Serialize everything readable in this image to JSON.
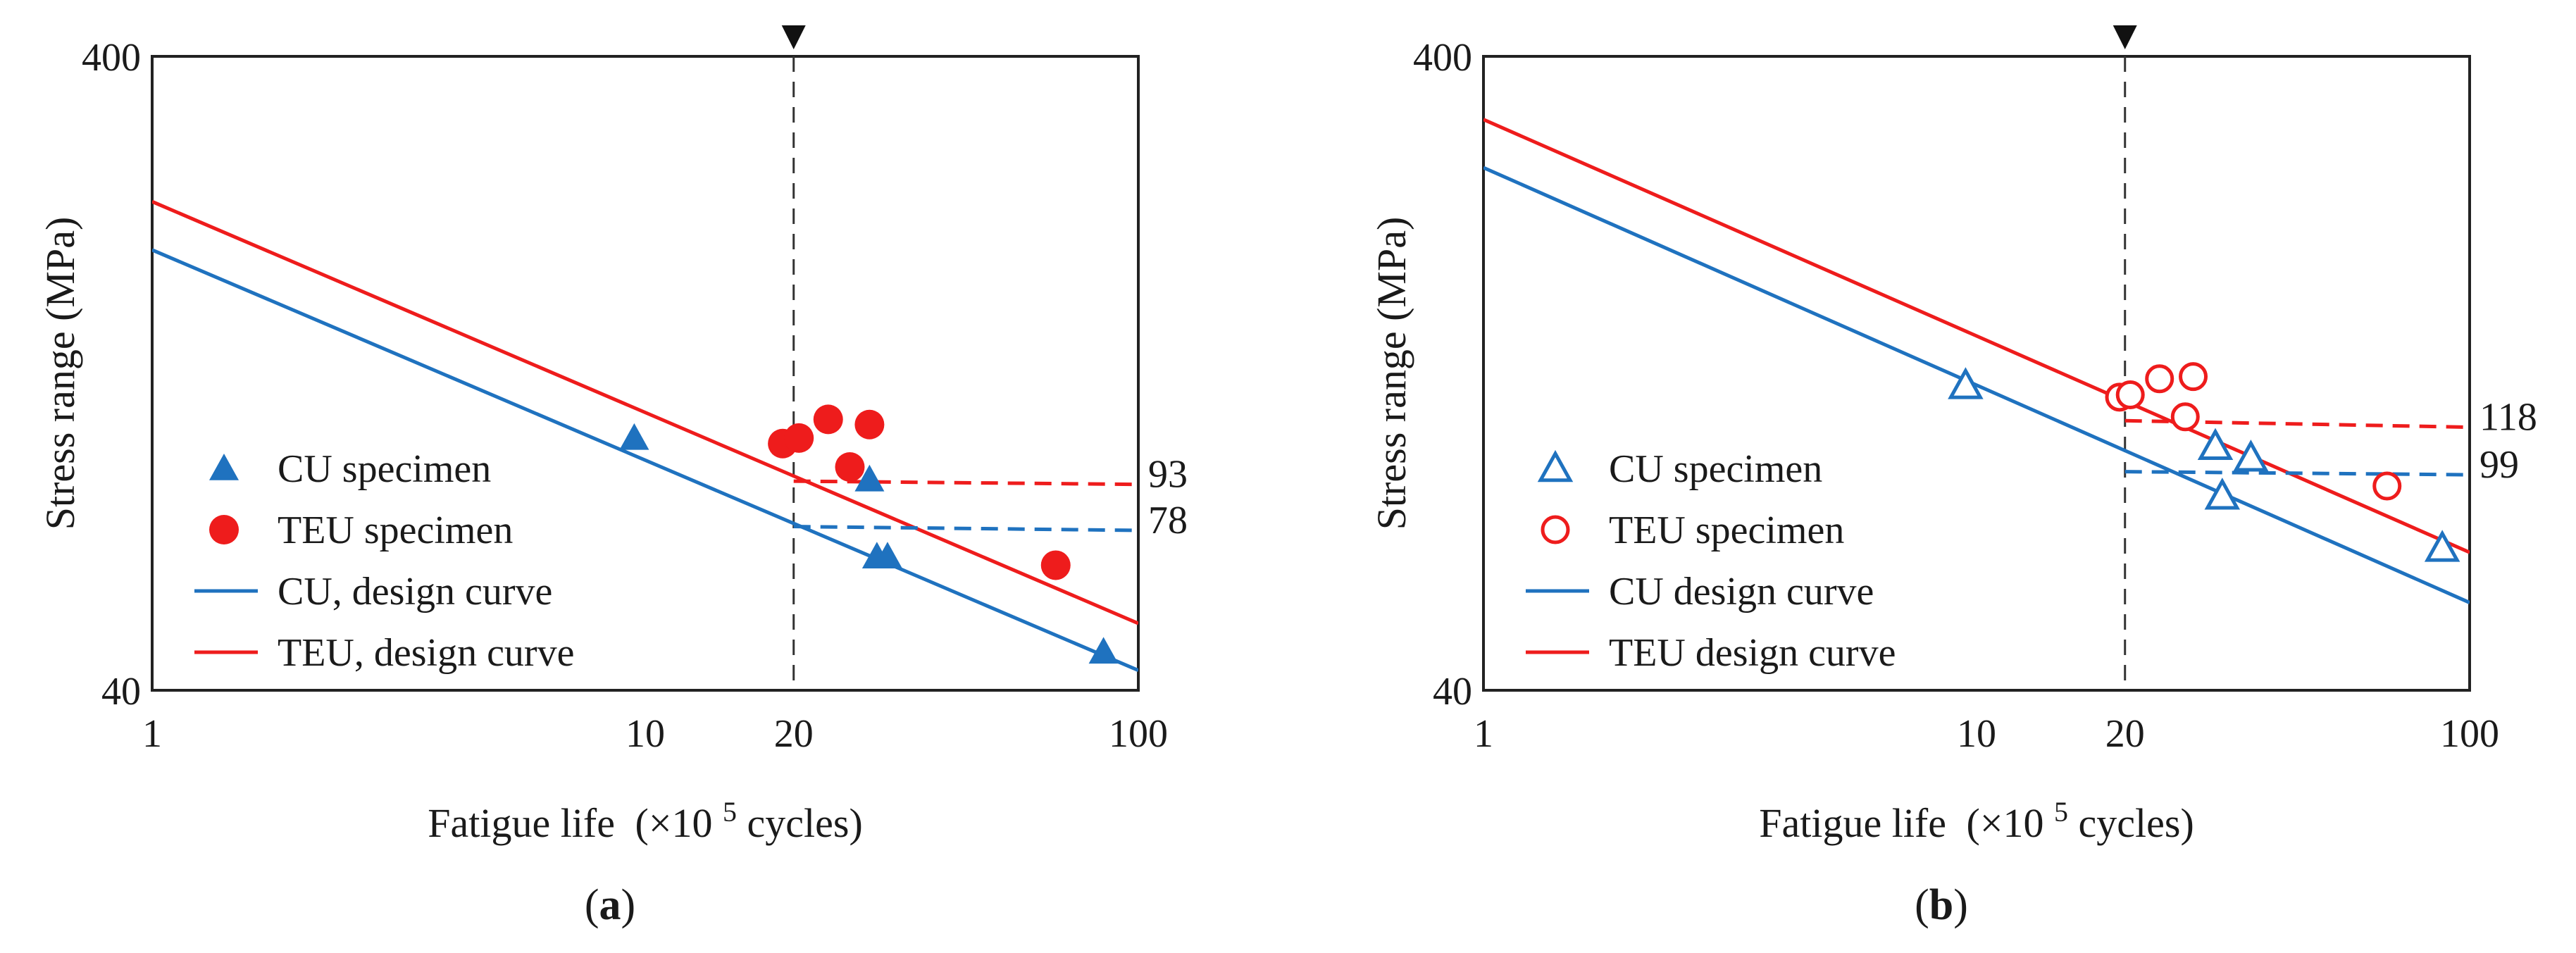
{
  "chart_data": [
    {
      "type": "scatter",
      "panel_label": "a",
      "xlabel": "Fatigue life",
      "xlabel_unit_open": "(×10",
      "xlabel_unit_exp": "5",
      "xlabel_unit_close": " cycles)",
      "ylabel": "Stress range (MPa)",
      "x_scale": "log",
      "y_scale": "log",
      "xlim": [
        1,
        100
      ],
      "ylim": [
        40,
        400
      ],
      "x_ticks": [
        "1",
        "10",
        "100"
      ],
      "y_ticks": [
        "40",
        "400"
      ],
      "reference_marker": {
        "x": 20,
        "label": "20"
      },
      "series": [
        {
          "name": "CU specimen",
          "kind": "points",
          "marker": "triangle",
          "filled": true,
          "color": "#1f72bf",
          "points": [
            [
              9.5,
              100
            ],
            [
              28.5,
              86
            ],
            [
              29.5,
              65
            ],
            [
              31,
              65
            ],
            [
              85,
              46
            ]
          ]
        },
        {
          "name": "TEU specimen",
          "kind": "points",
          "marker": "circle",
          "filled": true,
          "color": "#ee1c1c",
          "points": [
            [
              19,
              98
            ],
            [
              20.5,
              100
            ],
            [
              23.5,
              107
            ],
            [
              26,
              90
            ],
            [
              28.5,
              105
            ],
            [
              68,
              63
            ]
          ]
        },
        {
          "name": "CU, design curve",
          "kind": "line",
          "color": "#1f72bf",
          "points": [
            [
              1,
              198
            ],
            [
              100,
              43
            ]
          ]
        },
        {
          "name": "TEU, design curve",
          "kind": "line",
          "color": "#ee1c1c",
          "points": [
            [
              1,
              236
            ],
            [
              100,
              51
            ]
          ]
        }
      ],
      "hlines": [
        {
          "label": "93",
          "color": "#ee1c1c",
          "from": 20,
          "to": 100,
          "y_start": 85.5,
          "y_end": 84.5
        },
        {
          "label": "78",
          "color": "#1f72bf",
          "from": 20,
          "to": 100,
          "y_start": 72.5,
          "y_end": 71.5
        }
      ],
      "legend": [
        "CU specimen",
        "TEU specimen",
        "CU, design curve",
        "TEU, design curve"
      ],
      "legend_position": "bottom-left"
    },
    {
      "type": "scatter",
      "panel_label": "b",
      "xlabel": "Fatigue life",
      "xlabel_unit_open": "(×10",
      "xlabel_unit_exp": "5",
      "xlabel_unit_close": " cycles)",
      "ylabel": "Stress range (MPa)",
      "x_scale": "log",
      "y_scale": "log",
      "xlim": [
        1,
        100
      ],
      "ylim": [
        40,
        400
      ],
      "x_ticks": [
        "1",
        "10",
        "100"
      ],
      "y_ticks": [
        "40",
        "400"
      ],
      "reference_marker": {
        "x": 20,
        "label": "20"
      },
      "series": [
        {
          "name": "CU specimen",
          "kind": "points",
          "marker": "triangle",
          "filled": false,
          "color": "#1f72bf",
          "points": [
            [
              9.5,
              121
            ],
            [
              30.5,
              97
            ],
            [
              31.5,
              81
            ],
            [
              36,
              93
            ],
            [
              88,
              67
            ]
          ]
        },
        {
          "name": "TEU specimen",
          "kind": "points",
          "marker": "circle",
          "filled": false,
          "color": "#ee1c1c",
          "points": [
            [
              19.5,
              116
            ],
            [
              20.5,
              117
            ],
            [
              23.5,
              124
            ],
            [
              26.5,
              108
            ],
            [
              27.5,
              125
            ],
            [
              68,
              84
            ]
          ]
        },
        {
          "name": "CU design curve",
          "kind": "line",
          "color": "#1f72bf",
          "points": [
            [
              1,
              267
            ],
            [
              100,
              55
            ]
          ]
        },
        {
          "name": "TEU design curve",
          "kind": "line",
          "color": "#ee1c1c",
          "points": [
            [
              1,
              318
            ],
            [
              100,
              66
            ]
          ]
        }
      ],
      "hlines": [
        {
          "label": "118",
          "color": "#ee1c1c",
          "from": 20,
          "to": 100,
          "y_start": 106.5,
          "y_end": 104
        },
        {
          "label": "99",
          "color": "#1f72bf",
          "from": 20,
          "to": 100,
          "y_start": 88.5,
          "y_end": 87.5
        }
      ],
      "legend": [
        "CU specimen",
        "TEU specimen",
        "CU design curve",
        "TEU design curve"
      ],
      "legend_position": "bottom-left"
    }
  ]
}
